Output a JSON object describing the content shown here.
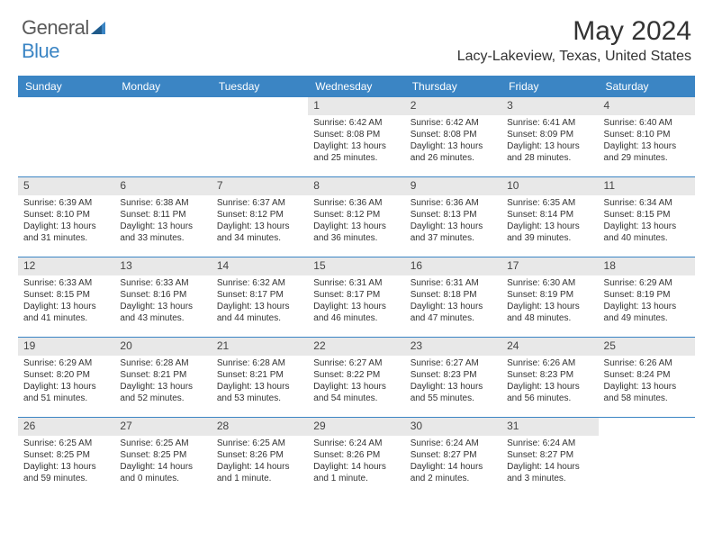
{
  "logo": {
    "text1": "General",
    "text2": "Blue"
  },
  "title": "May 2024",
  "location": "Lacy-Lakeview, Texas, United States",
  "colors": {
    "header_bg": "#3b85c4",
    "header_text": "#ffffff",
    "daynum_bg": "#e8e8e8",
    "text": "#333333",
    "logo_gray": "#5a5a5a",
    "logo_blue": "#3b85c4",
    "row_border": "#3b85c4"
  },
  "weekdays": [
    "Sunday",
    "Monday",
    "Tuesday",
    "Wednesday",
    "Thursday",
    "Friday",
    "Saturday"
  ],
  "weeks": [
    [
      null,
      null,
      null,
      {
        "n": "1",
        "sunrise": "Sunrise: 6:42 AM",
        "sunset": "Sunset: 8:08 PM",
        "daylight": "Daylight: 13 hours and 25 minutes."
      },
      {
        "n": "2",
        "sunrise": "Sunrise: 6:42 AM",
        "sunset": "Sunset: 8:08 PM",
        "daylight": "Daylight: 13 hours and 26 minutes."
      },
      {
        "n": "3",
        "sunrise": "Sunrise: 6:41 AM",
        "sunset": "Sunset: 8:09 PM",
        "daylight": "Daylight: 13 hours and 28 minutes."
      },
      {
        "n": "4",
        "sunrise": "Sunrise: 6:40 AM",
        "sunset": "Sunset: 8:10 PM",
        "daylight": "Daylight: 13 hours and 29 minutes."
      }
    ],
    [
      {
        "n": "5",
        "sunrise": "Sunrise: 6:39 AM",
        "sunset": "Sunset: 8:10 PM",
        "daylight": "Daylight: 13 hours and 31 minutes."
      },
      {
        "n": "6",
        "sunrise": "Sunrise: 6:38 AM",
        "sunset": "Sunset: 8:11 PM",
        "daylight": "Daylight: 13 hours and 33 minutes."
      },
      {
        "n": "7",
        "sunrise": "Sunrise: 6:37 AM",
        "sunset": "Sunset: 8:12 PM",
        "daylight": "Daylight: 13 hours and 34 minutes."
      },
      {
        "n": "8",
        "sunrise": "Sunrise: 6:36 AM",
        "sunset": "Sunset: 8:12 PM",
        "daylight": "Daylight: 13 hours and 36 minutes."
      },
      {
        "n": "9",
        "sunrise": "Sunrise: 6:36 AM",
        "sunset": "Sunset: 8:13 PM",
        "daylight": "Daylight: 13 hours and 37 minutes."
      },
      {
        "n": "10",
        "sunrise": "Sunrise: 6:35 AM",
        "sunset": "Sunset: 8:14 PM",
        "daylight": "Daylight: 13 hours and 39 minutes."
      },
      {
        "n": "11",
        "sunrise": "Sunrise: 6:34 AM",
        "sunset": "Sunset: 8:15 PM",
        "daylight": "Daylight: 13 hours and 40 minutes."
      }
    ],
    [
      {
        "n": "12",
        "sunrise": "Sunrise: 6:33 AM",
        "sunset": "Sunset: 8:15 PM",
        "daylight": "Daylight: 13 hours and 41 minutes."
      },
      {
        "n": "13",
        "sunrise": "Sunrise: 6:33 AM",
        "sunset": "Sunset: 8:16 PM",
        "daylight": "Daylight: 13 hours and 43 minutes."
      },
      {
        "n": "14",
        "sunrise": "Sunrise: 6:32 AM",
        "sunset": "Sunset: 8:17 PM",
        "daylight": "Daylight: 13 hours and 44 minutes."
      },
      {
        "n": "15",
        "sunrise": "Sunrise: 6:31 AM",
        "sunset": "Sunset: 8:17 PM",
        "daylight": "Daylight: 13 hours and 46 minutes."
      },
      {
        "n": "16",
        "sunrise": "Sunrise: 6:31 AM",
        "sunset": "Sunset: 8:18 PM",
        "daylight": "Daylight: 13 hours and 47 minutes."
      },
      {
        "n": "17",
        "sunrise": "Sunrise: 6:30 AM",
        "sunset": "Sunset: 8:19 PM",
        "daylight": "Daylight: 13 hours and 48 minutes."
      },
      {
        "n": "18",
        "sunrise": "Sunrise: 6:29 AM",
        "sunset": "Sunset: 8:19 PM",
        "daylight": "Daylight: 13 hours and 49 minutes."
      }
    ],
    [
      {
        "n": "19",
        "sunrise": "Sunrise: 6:29 AM",
        "sunset": "Sunset: 8:20 PM",
        "daylight": "Daylight: 13 hours and 51 minutes."
      },
      {
        "n": "20",
        "sunrise": "Sunrise: 6:28 AM",
        "sunset": "Sunset: 8:21 PM",
        "daylight": "Daylight: 13 hours and 52 minutes."
      },
      {
        "n": "21",
        "sunrise": "Sunrise: 6:28 AM",
        "sunset": "Sunset: 8:21 PM",
        "daylight": "Daylight: 13 hours and 53 minutes."
      },
      {
        "n": "22",
        "sunrise": "Sunrise: 6:27 AM",
        "sunset": "Sunset: 8:22 PM",
        "daylight": "Daylight: 13 hours and 54 minutes."
      },
      {
        "n": "23",
        "sunrise": "Sunrise: 6:27 AM",
        "sunset": "Sunset: 8:23 PM",
        "daylight": "Daylight: 13 hours and 55 minutes."
      },
      {
        "n": "24",
        "sunrise": "Sunrise: 6:26 AM",
        "sunset": "Sunset: 8:23 PM",
        "daylight": "Daylight: 13 hours and 56 minutes."
      },
      {
        "n": "25",
        "sunrise": "Sunrise: 6:26 AM",
        "sunset": "Sunset: 8:24 PM",
        "daylight": "Daylight: 13 hours and 58 minutes."
      }
    ],
    [
      {
        "n": "26",
        "sunrise": "Sunrise: 6:25 AM",
        "sunset": "Sunset: 8:25 PM",
        "daylight": "Daylight: 13 hours and 59 minutes."
      },
      {
        "n": "27",
        "sunrise": "Sunrise: 6:25 AM",
        "sunset": "Sunset: 8:25 PM",
        "daylight": "Daylight: 14 hours and 0 minutes."
      },
      {
        "n": "28",
        "sunrise": "Sunrise: 6:25 AM",
        "sunset": "Sunset: 8:26 PM",
        "daylight": "Daylight: 14 hours and 1 minute."
      },
      {
        "n": "29",
        "sunrise": "Sunrise: 6:24 AM",
        "sunset": "Sunset: 8:26 PM",
        "daylight": "Daylight: 14 hours and 1 minute."
      },
      {
        "n": "30",
        "sunrise": "Sunrise: 6:24 AM",
        "sunset": "Sunset: 8:27 PM",
        "daylight": "Daylight: 14 hours and 2 minutes."
      },
      {
        "n": "31",
        "sunrise": "Sunrise: 6:24 AM",
        "sunset": "Sunset: 8:27 PM",
        "daylight": "Daylight: 14 hours and 3 minutes."
      },
      null
    ]
  ]
}
